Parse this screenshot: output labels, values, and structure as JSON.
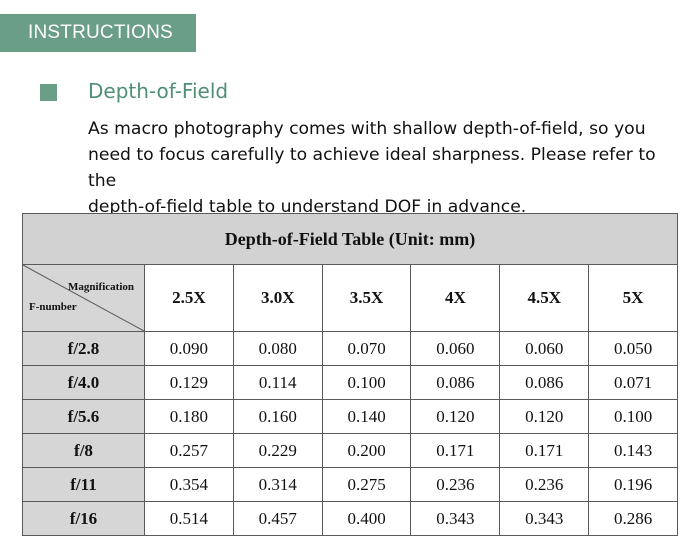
{
  "section_tab": "INSTRUCTIONS",
  "heading": "Depth-of-Field",
  "body_lines": [
    "As macro photography comes with shallow depth-of-field, so you",
    "need to focus carefully to achieve ideal sharpness. Please refer to the",
    "depth-of-field table to understand DOF in advance."
  ],
  "table": {
    "title": "Depth-of-Field Table (Unit: mm)",
    "corner_top": "Magnification",
    "corner_bottom": "F-number",
    "columns": [
      "2.5X",
      "3.0X",
      "3.5X",
      "4X",
      "4.5X",
      "5X"
    ],
    "rows": [
      {
        "label": "f/2.8",
        "values": [
          "0.090",
          "0.080",
          "0.070",
          "0.060",
          "0.060",
          "0.050"
        ]
      },
      {
        "label": "f/4.0",
        "values": [
          "0.129",
          "0.114",
          "0.100",
          "0.086",
          "0.086",
          "0.071"
        ]
      },
      {
        "label": "f/5.6",
        "values": [
          "0.180",
          "0.160",
          "0.140",
          "0.120",
          "0.120",
          "0.100"
        ]
      },
      {
        "label": "f/8",
        "values": [
          "0.257",
          "0.229",
          "0.200",
          "0.171",
          "0.171",
          "0.143"
        ]
      },
      {
        "label": "f/11",
        "values": [
          "0.354",
          "0.314",
          "0.275",
          "0.236",
          "0.236",
          "0.196"
        ]
      },
      {
        "label": "f/16",
        "values": [
          "0.514",
          "0.457",
          "0.400",
          "0.343",
          "0.343",
          "0.286"
        ]
      }
    ]
  },
  "colors": {
    "accent": "#6a9e86",
    "heading": "#4f8f75",
    "table_header_bg": "#d2d2d2"
  }
}
